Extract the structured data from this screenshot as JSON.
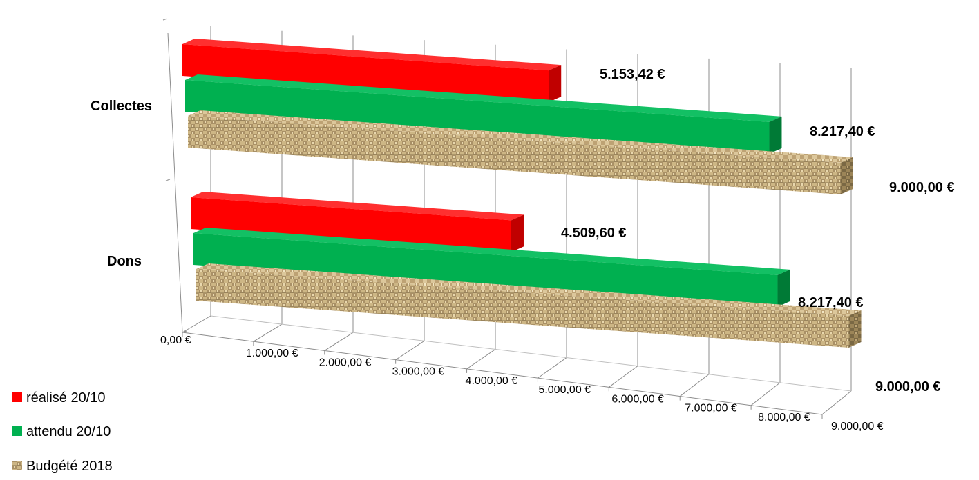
{
  "chart_data": {
    "type": "bar",
    "orientation": "horizontal-3d",
    "categories": [
      "Collectes",
      "Dons"
    ],
    "series": [
      {
        "name": "réalisé 20/10",
        "values": [
          5153.42,
          4509.6
        ],
        "labels": [
          "5.153,42 €",
          "4.509,60 €"
        ],
        "color": "#ff0000",
        "fill": "solid"
      },
      {
        "name": "attendu 20/10",
        "values": [
          8217.4,
          8217.4
        ],
        "labels": [
          "8.217,40 €",
          "8.217,40 €"
        ],
        "color": "#00b050",
        "fill": "solid"
      },
      {
        "name": "Budgété 2018",
        "values": [
          9000.0,
          9000.0
        ],
        "labels": [
          "9.000,00 €",
          "9.000,00 €"
        ],
        "color": "#c8b07a",
        "fill": "texture"
      }
    ],
    "xlim": [
      0,
      9000
    ],
    "xticks": [
      0,
      1000,
      2000,
      3000,
      4000,
      5000,
      6000,
      7000,
      8000,
      9000
    ],
    "xtick_labels": [
      "0,00 €",
      "1.000,00 €",
      "2.000,00 €",
      "3.000,00 €",
      "4.000,00 €",
      "5.000,00 €",
      "6.000,00 €",
      "7.000,00 €",
      "8.000,00 €",
      "9.000,00 €"
    ],
    "grid": true,
    "legend": "bottom-left",
    "title": "",
    "xlabel": "",
    "ylabel": ""
  }
}
